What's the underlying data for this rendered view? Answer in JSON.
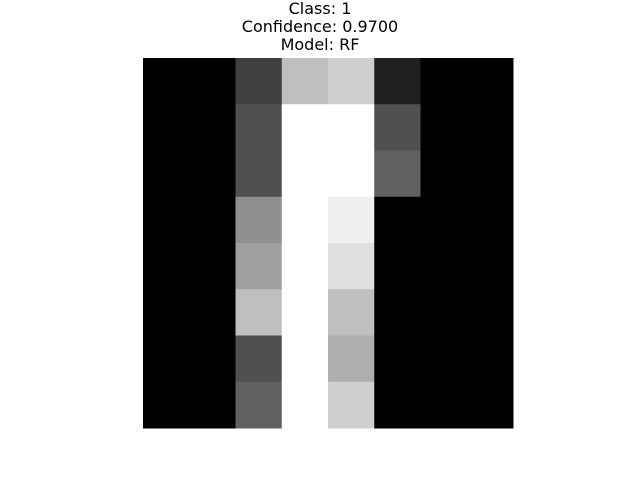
{
  "chart_data": {
    "type": "heatmap",
    "title_lines": [
      "Class: 1",
      "Confidence: 0.9700",
      "Model: RF"
    ],
    "xlabel": "",
    "ylabel": "",
    "colormap": "gray",
    "value_range": [
      0,
      16
    ],
    "rows": 8,
    "cols": 8,
    "values": [
      [
        0,
        0,
        4,
        12,
        13,
        2,
        0,
        0
      ],
      [
        0,
        0,
        5,
        16,
        16,
        5,
        0,
        0
      ],
      [
        0,
        0,
        5,
        16,
        16,
        6,
        0,
        0
      ],
      [
        0,
        0,
        9,
        16,
        15,
        0,
        0,
        0
      ],
      [
        0,
        0,
        10,
        16,
        14,
        0,
        0,
        0
      ],
      [
        0,
        0,
        12,
        16,
        12,
        0,
        0,
        0
      ],
      [
        0,
        0,
        5,
        16,
        11,
        0,
        0,
        0
      ],
      [
        0,
        0,
        6,
        16,
        13,
        0,
        0,
        0
      ]
    ]
  }
}
